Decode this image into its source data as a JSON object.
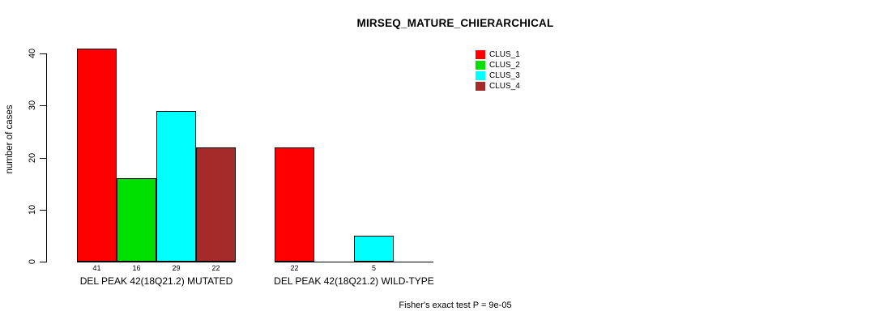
{
  "title": "MIRSEQ_MATURE_CHIERARCHICAL",
  "footer": "Fisher's exact test P = 9e-05",
  "chart_data": {
    "type": "bar",
    "title": "MIRSEQ_MATURE_CHIERARCHICAL",
    "xlabel": "",
    "ylabel": "number of cases",
    "ylim": [
      0,
      40
    ],
    "yticks": [
      0,
      10,
      20,
      30,
      40
    ],
    "grid": false,
    "legend_position": "top-right",
    "bar_border_color": "#000000",
    "series": [
      {
        "name": "CLUS_1",
        "color": "#FF0000"
      },
      {
        "name": "CLUS_2",
        "color": "#00E000"
      },
      {
        "name": "CLUS_3",
        "color": "#00FFFF"
      },
      {
        "name": "CLUS_4",
        "color": "#A52A2A"
      }
    ],
    "groups": [
      {
        "label": "DEL PEAK 42(18Q21.2) MUTATED",
        "values": [
          41,
          16,
          29,
          22
        ],
        "value_labels": [
          "41",
          "16",
          "29",
          "22"
        ]
      },
      {
        "label": "DEL PEAK 42(18Q21.2) WILD-TYPE",
        "values": [
          22,
          null,
          5,
          null
        ],
        "value_labels": [
          "22",
          null,
          "5",
          null
        ]
      }
    ],
    "annotation": "Fisher's exact test P = 9e-05"
  }
}
